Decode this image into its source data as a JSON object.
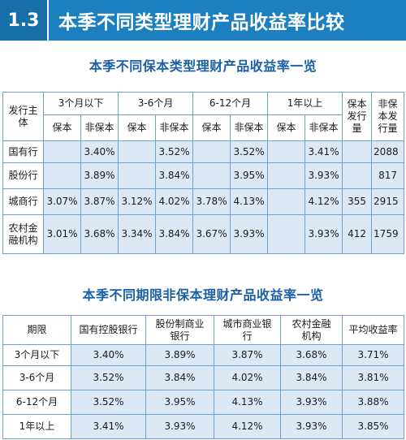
{
  "header": {
    "number": "1.3",
    "title": "本季不同类型理财产品收益率比较"
  },
  "table1": {
    "title": "本季不同保本类型理财产品收益率一览",
    "issuer_header": "发行主体",
    "periods": [
      "3个月以下",
      "3-6个月",
      "6-12个月",
      "1年以上"
    ],
    "guaranteed": "保本",
    "nonguaranteed": "非保本",
    "count_guaranteed": "保本发行量",
    "count_nonguaranteed": "非保本发行量",
    "rows": [
      {
        "name": "国有行",
        "v": [
          "",
          "3.40%",
          "",
          "3.52%",
          "",
          "3.52%",
          "",
          "3.41%"
        ],
        "c1": "",
        "c2": "2088"
      },
      {
        "name": "股份行",
        "v": [
          "",
          "3.89%",
          "",
          "3.84%",
          "",
          "3.95%",
          "",
          "3.93%"
        ],
        "c1": "",
        "c2": "817"
      },
      {
        "name": "城商行",
        "v": [
          "3.07%",
          "3.87%",
          "3.12%",
          "4.02%",
          "3.78%",
          "4.13%",
          "",
          "4.12%"
        ],
        "c1": "355",
        "c2": "2915"
      },
      {
        "name": "农村金融机构",
        "v": [
          "3.01%",
          "3.68%",
          "3.34%",
          "3.84%",
          "3.67%",
          "3.93%",
          "",
          "3.93%"
        ],
        "c1": "412",
        "c2": "1759"
      }
    ]
  },
  "table2": {
    "title": "本季不同期限非保本理财产品收益率一览",
    "headers": [
      "期限",
      "国有控股银行",
      "股份制商业银行",
      "城市商业银行",
      "农村金融机构",
      "平均收益率"
    ],
    "rows": [
      [
        "3个月以下",
        "3.40%",
        "3.89%",
        "3.87%",
        "3.68%",
        "3.71%"
      ],
      [
        "3-6个月",
        "3.52%",
        "3.84%",
        "4.02%",
        "3.84%",
        "3.81%"
      ],
      [
        "6-12个月",
        "3.52%",
        "3.95%",
        "4.13%",
        "3.93%",
        "3.88%"
      ],
      [
        "1年以上",
        "3.41%",
        "3.93%",
        "4.12%",
        "3.93%",
        "3.85%"
      ]
    ]
  }
}
